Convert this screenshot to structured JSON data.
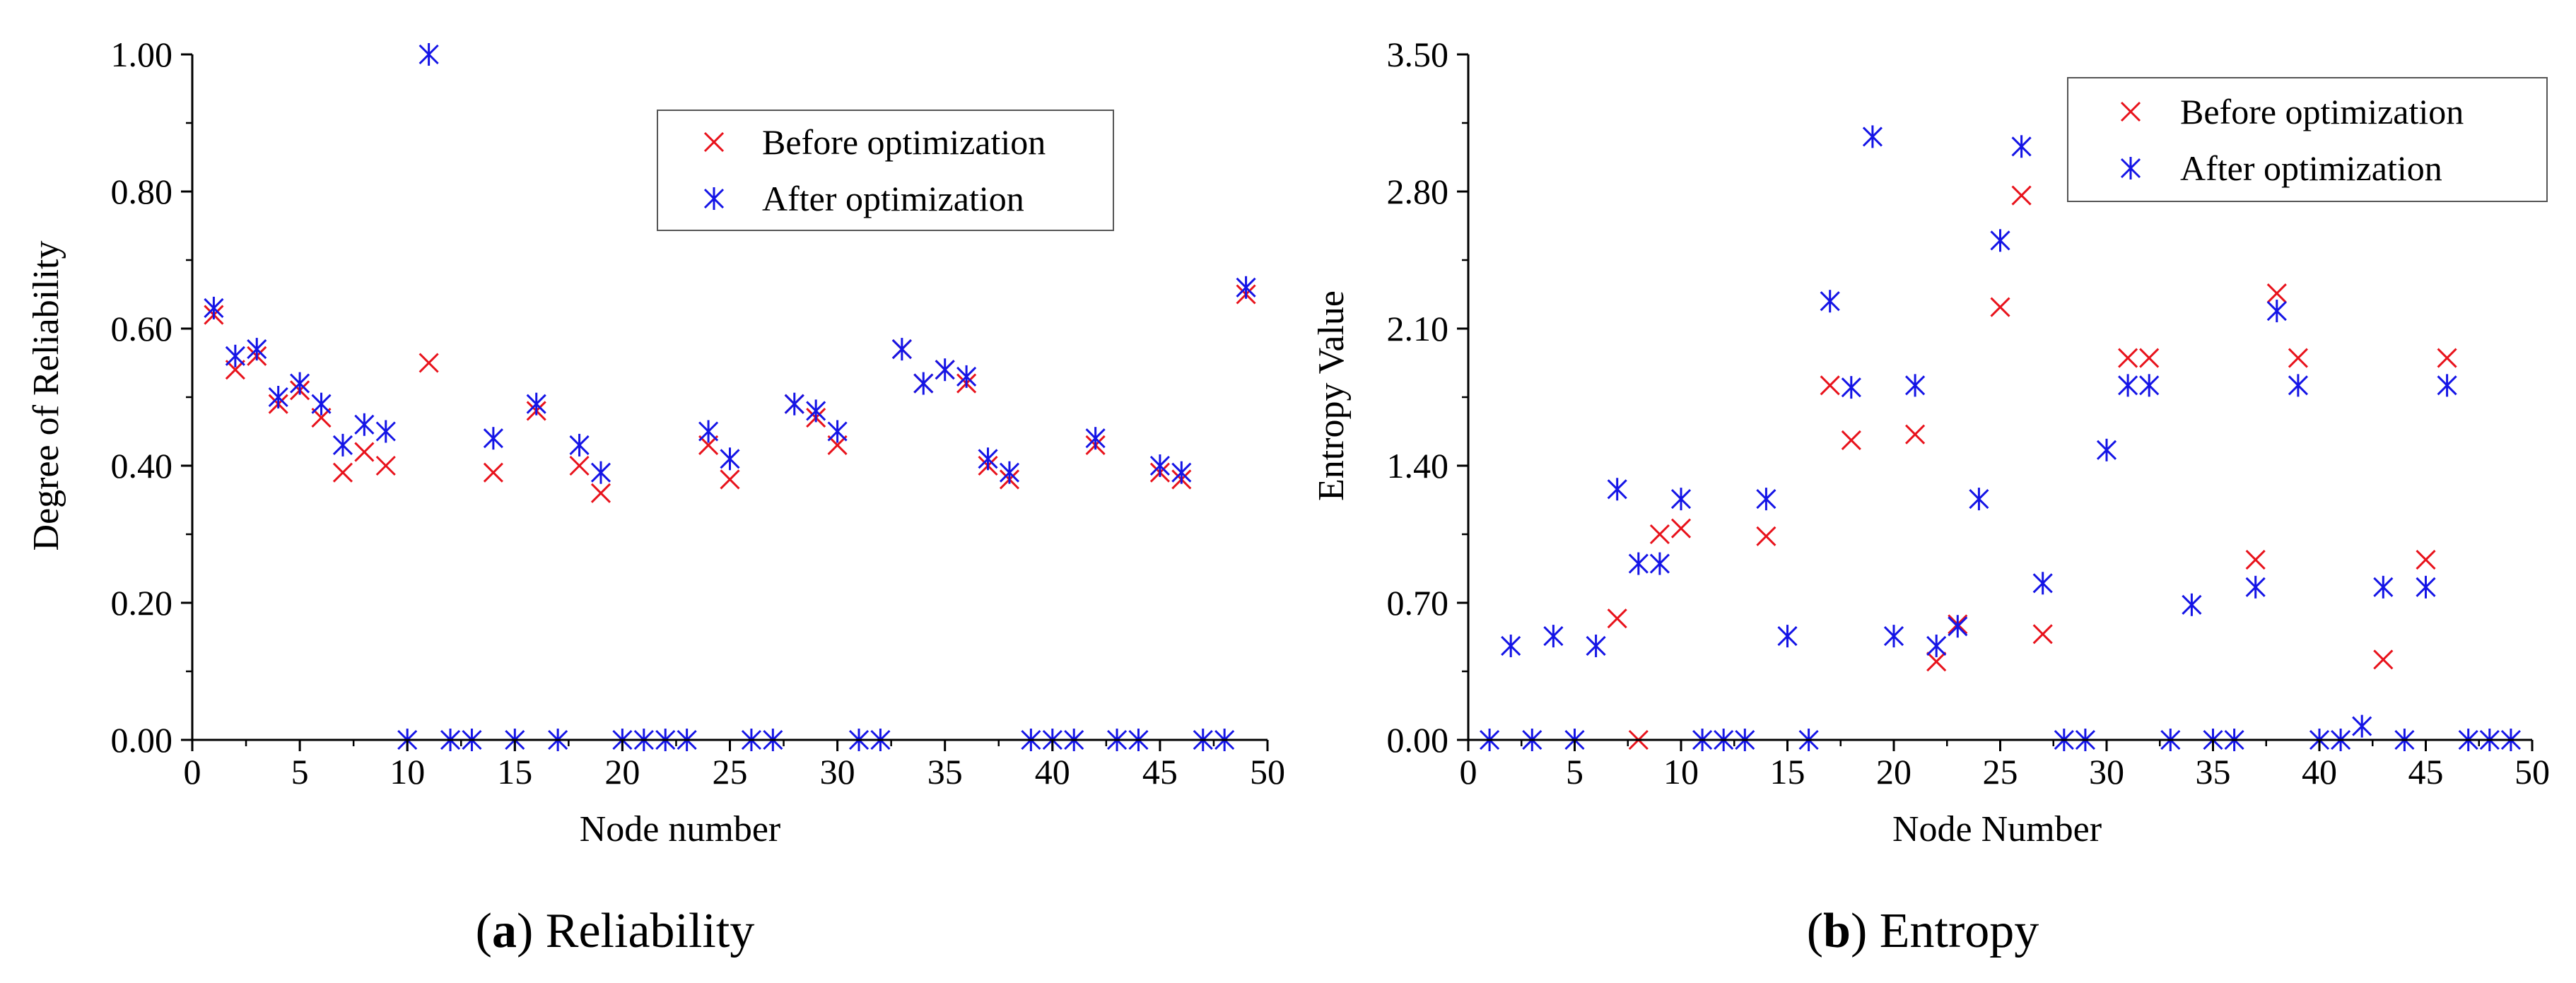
{
  "captions": [
    {
      "open": "(",
      "letter": "a",
      "close": ")",
      "text": " Reliability"
    },
    {
      "open": "(",
      "letter": "b",
      "close": ")",
      "text": " Entropy"
    }
  ],
  "colors": {
    "before": "#e8121b",
    "after": "#1414e6",
    "axis": "#000000"
  },
  "chart_data": [
    {
      "type": "scatter",
      "xlabel": "Node number",
      "ylabel": "Degree of Reliability",
      "xlim": [
        0,
        50
      ],
      "ylim": [
        0,
        1.0
      ],
      "xticks": [
        "0",
        "5",
        "10",
        "15",
        "20",
        "25",
        "30",
        "35",
        "40",
        "45",
        "50"
      ],
      "yticks": [
        "0.00",
        "0.20",
        "0.40",
        "0.60",
        "0.80",
        "1.00"
      ],
      "legend": {
        "position": "top-right",
        "entries": [
          "Before optimization",
          "After optimization"
        ]
      },
      "series": [
        {
          "name": "Before optimization",
          "marker": "x",
          "x": [
            1,
            2,
            3,
            4,
            5,
            6,
            7,
            8,
            9,
            11,
            14,
            16,
            18,
            19,
            24,
            25,
            28,
            29,
            30,
            33,
            34,
            35,
            36,
            37,
            38,
            42,
            45,
            46,
            49
          ],
          "y": [
            0.62,
            0.54,
            0.56,
            0.49,
            0.51,
            0.47,
            0.39,
            0.42,
            0.4,
            0.55,
            0.39,
            0.48,
            0.4,
            0.36,
            0.43,
            0.38,
            0.49,
            0.47,
            0.43,
            0.57,
            0.52,
            0.54,
            0.52,
            0.4,
            0.38,
            0.43,
            0.39,
            0.38,
            0.65
          ]
        },
        {
          "name": "After optimization",
          "marker": "asterisk",
          "x": [
            1,
            2,
            3,
            4,
            5,
            6,
            7,
            8,
            9,
            10,
            11,
            12,
            13,
            14,
            15,
            16,
            17,
            18,
            19,
            20,
            21,
            22,
            23,
            24,
            25,
            26,
            27,
            28,
            29,
            30,
            31,
            32,
            33,
            34,
            35,
            36,
            37,
            38,
            39,
            40,
            41,
            42,
            43,
            44,
            45,
            46,
            47,
            48,
            49
          ],
          "y": [
            0.63,
            0.56,
            0.57,
            0.5,
            0.52,
            0.49,
            0.43,
            0.46,
            0.45,
            0.0,
            1.0,
            0.0,
            0.0,
            0.44,
            0.0,
            0.49,
            0.0,
            0.43,
            0.39,
            0.0,
            0.0,
            0.0,
            0.0,
            0.45,
            0.41,
            0.0,
            0.0,
            0.49,
            0.48,
            0.45,
            0.0,
            0.0,
            0.57,
            0.52,
            0.54,
            0.53,
            0.41,
            0.39,
            0.0,
            0.0,
            0.0,
            0.44,
            0.0,
            0.0,
            0.4,
            0.39,
            0.0,
            0.0,
            0.66
          ]
        }
      ]
    },
    {
      "type": "scatter",
      "xlabel": "Node Number",
      "ylabel": "Entropy Value",
      "xlim": [
        0,
        50
      ],
      "ylim": [
        0,
        3.5
      ],
      "xticks": [
        "0",
        "5",
        "10",
        "15",
        "20",
        "25",
        "30",
        "35",
        "40",
        "45",
        "50"
      ],
      "yticks": [
        "0.00",
        "0.70",
        "1.40",
        "2.10",
        "2.80",
        "3.50"
      ],
      "legend": {
        "position": "top-right",
        "entries": [
          "Before optimization",
          "After optimization"
        ]
      },
      "series": [
        {
          "name": "Before optimization",
          "marker": "x",
          "x": [
            7,
            8,
            9,
            10,
            14,
            17,
            18,
            21,
            22,
            23,
            25,
            26,
            27,
            31,
            32,
            37,
            38,
            39,
            43,
            45,
            46
          ],
          "y": [
            0.62,
            0.0,
            1.05,
            1.08,
            1.04,
            1.81,
            1.53,
            1.56,
            0.4,
            0.59,
            2.21,
            2.78,
            0.54,
            1.95,
            1.95,
            0.92,
            2.28,
            1.95,
            0.41,
            0.92,
            1.95
          ]
        },
        {
          "name": "After optimization",
          "marker": "asterisk",
          "x": [
            1,
            2,
            3,
            4,
            5,
            6,
            7,
            8,
            9,
            10,
            11,
            12,
            13,
            14,
            15,
            16,
            17,
            18,
            19,
            20,
            21,
            22,
            23,
            24,
            25,
            26,
            27,
            28,
            29,
            30,
            31,
            32,
            33,
            34,
            35,
            36,
            37,
            38,
            39,
            40,
            41,
            42,
            43,
            44,
            45,
            46,
            47,
            48,
            49
          ],
          "y": [
            0.0,
            0.48,
            0.0,
            0.53,
            0.0,
            0.48,
            1.28,
            0.9,
            0.9,
            1.23,
            0.0,
            0.0,
            0.0,
            1.23,
            0.53,
            0.0,
            2.24,
            1.8,
            3.08,
            0.53,
            1.81,
            0.48,
            0.58,
            1.23,
            2.55,
            3.03,
            0.8,
            0.0,
            0.0,
            1.48,
            1.81,
            1.81,
            0.0,
            0.69,
            0.0,
            0.0,
            0.78,
            2.19,
            1.81,
            0.0,
            0.0,
            0.07,
            0.78,
            0.0,
            0.78,
            1.81,
            0.0,
            0.0,
            0.0
          ]
        }
      ]
    }
  ]
}
